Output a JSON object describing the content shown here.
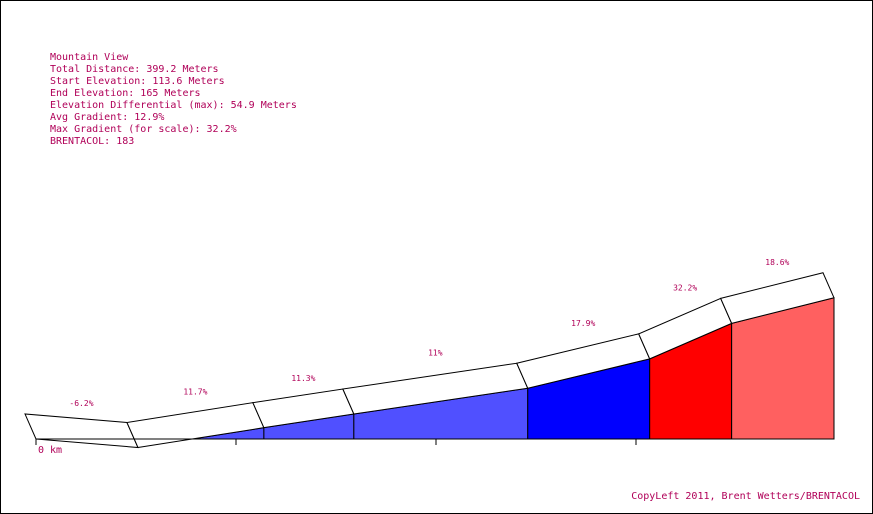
{
  "info": {
    "title": "Mountain View",
    "total_distance": "Total Distance: 399.2 Meters",
    "start_elevation": "Start Elevation: 113.6 Meters",
    "end_elevation": "End Elevation: 165 Meters",
    "elevation_differential": "Elevation Differential (max): 54.9 Meters",
    "avg_gradient": "Avg Gradient: 12.9%",
    "max_gradient": "Max Gradient (for scale): 32.2%",
    "brentacol": "BRENTACOL: 183"
  },
  "copyleft": "CopyLeft 2011, Brent Wetters/BRENTACOL",
  "colors": {
    "text": "#b00058",
    "outline": "#000000",
    "band_fill": "#ffffff",
    "light_blue": "#5050ff",
    "blue": "#0000ff",
    "red": "#ff0000",
    "salmon": "#ff6060"
  },
  "chart_data": {
    "type": "area",
    "title": "Mountain View",
    "xlabel": "0 km",
    "ylabel": "",
    "x_unit": "m",
    "segments": [
      {
        "label": "-6.2%",
        "gradient": -6.2,
        "x_start": 0,
        "x_end": 51,
        "color": "#ffffff"
      },
      {
        "label": "11.7%",
        "gradient": 11.7,
        "x_start": 51,
        "x_end": 114,
        "color": "#5050ff"
      },
      {
        "label": "11.3%",
        "gradient": 11.3,
        "x_start": 114,
        "x_end": 159,
        "color": "#5050ff"
      },
      {
        "label": "11%",
        "gradient": 11.0,
        "x_start": 159,
        "x_end": 246,
        "color": "#5050ff"
      },
      {
        "label": "17.9%",
        "gradient": 17.9,
        "x_start": 246,
        "x_end": 307,
        "color": "#0000ff"
      },
      {
        "label": "32.2%",
        "gradient": 32.2,
        "x_start": 307,
        "x_end": 348,
        "color": "#ff0000"
      },
      {
        "label": "18.6%",
        "gradient": 18.6,
        "x_start": 348,
        "x_end": 399.2,
        "color": "#ff6060"
      }
    ]
  }
}
